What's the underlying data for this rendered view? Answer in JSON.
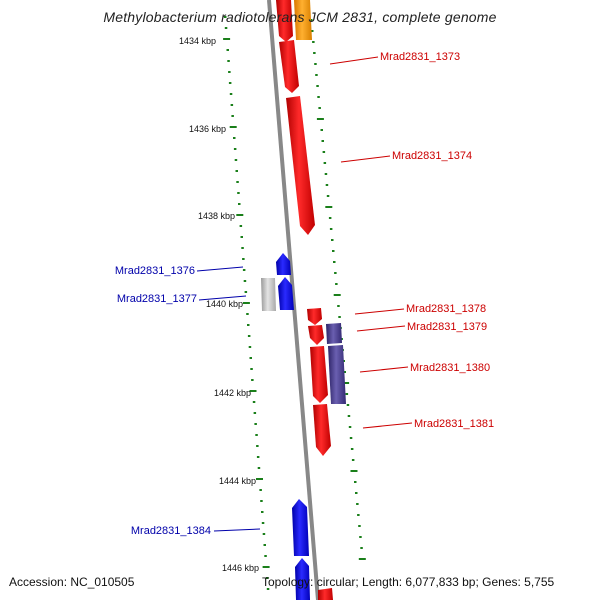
{
  "title": "Methylobacterium radiotolerans JCM 2831, complete genome",
  "accession_text": "Accession: NC_010505",
  "summary_text": "Topology: circular; Length: 6,077,833 bp; Genes: 5,755",
  "colors": {
    "forward_gene": "#ff0000",
    "reverse_gene": "#0000ff",
    "forward_label": "#cc0000",
    "reverse_label": "#0000aa",
    "grey_feature": "#c8c8c8",
    "orange_feature": "#ff9900",
    "purple_feature": "#4a3f8e",
    "tick": "#1a7f1a",
    "backbone": "#808080"
  },
  "ticks": [
    {
      "label": "1434 kbp"
    },
    {
      "label": "1436 kbp"
    },
    {
      "label": "1438 kbp"
    },
    {
      "label": "1440 kbp"
    },
    {
      "label": "1442 kbp"
    },
    {
      "label": "1444 kbp"
    },
    {
      "label": "1446 kbp"
    }
  ],
  "gene_labels": [
    {
      "text": "Mrad2831_1373",
      "strand": "forward"
    },
    {
      "text": "Mrad2831_1374",
      "strand": "forward"
    },
    {
      "text": "Mrad2831_1376",
      "strand": "reverse"
    },
    {
      "text": "Mrad2831_1377",
      "strand": "reverse"
    },
    {
      "text": "Mrad2831_1378",
      "strand": "forward"
    },
    {
      "text": "Mrad2831_1379",
      "strand": "forward"
    },
    {
      "text": "Mrad2831_1380",
      "strand": "forward"
    },
    {
      "text": "Mrad2831_1381",
      "strand": "forward"
    },
    {
      "text": "Mrad2831_1384",
      "strand": "reverse"
    }
  ]
}
